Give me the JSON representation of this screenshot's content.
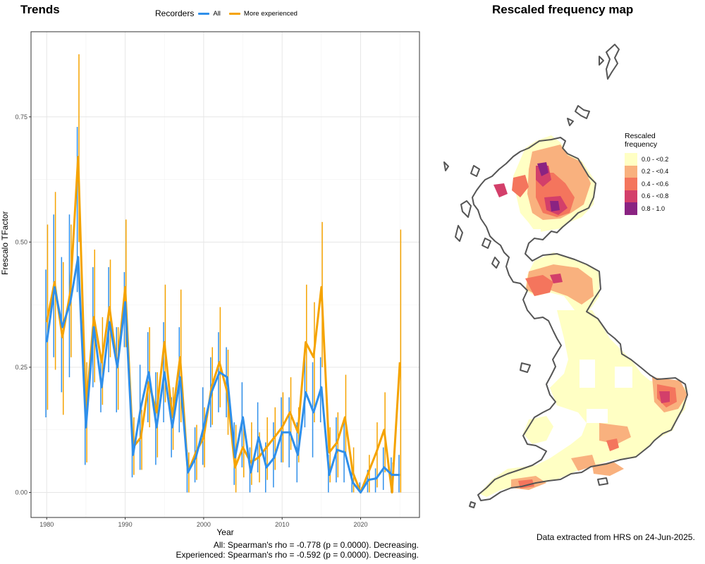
{
  "trends": {
    "title": "Trends",
    "legend_title": "Recorders",
    "legend": [
      {
        "label": "All",
        "color": "#2F8FEA"
      },
      {
        "label": "More experienced",
        "color": "#F5A300"
      }
    ]
  },
  "chart_data": {
    "type": "line",
    "title": "Trends",
    "xlabel": "Year",
    "ylabel": "Frescalo TFactor",
    "xlim": [
      1978.0,
      2027.5
    ],
    "ylim": [
      -0.05,
      0.92
    ],
    "x_ticks": [
      1980,
      1990,
      2000,
      2010,
      2020
    ],
    "y_ticks": [
      0.0,
      0.25,
      0.5,
      0.75
    ],
    "y_tick_labels": [
      "0.00",
      "0.25",
      "0.50",
      "0.75"
    ],
    "grid": true,
    "legend_position": "top",
    "series": [
      {
        "name": "All",
        "color": "#2F8FEA",
        "x": [
          1980,
          1981,
          1982,
          1983,
          1984,
          1985,
          1986,
          1987,
          1988,
          1989,
          1990,
          1991,
          1992,
          1993,
          1994,
          1995,
          1996,
          1997,
          1998,
          1999,
          2000,
          2001,
          2002,
          2003,
          2004,
          2005,
          2006,
          2007,
          2008,
          2009,
          2010,
          2011,
          2012,
          2013,
          2014,
          2015,
          2016,
          2017,
          2018,
          2019,
          2020,
          2021,
          2022,
          2023,
          2024,
          2025
        ],
        "y": [
          0.3,
          0.41,
          0.33,
          0.38,
          0.47,
          0.13,
          0.33,
          0.21,
          0.34,
          0.25,
          0.38,
          0.075,
          0.17,
          0.24,
          0.13,
          0.24,
          0.13,
          0.23,
          0.04,
          0.07,
          0.13,
          0.2,
          0.24,
          0.23,
          0.07,
          0.15,
          0.04,
          0.11,
          0.05,
          0.07,
          0.12,
          0.12,
          0.075,
          0.2,
          0.16,
          0.21,
          0.035,
          0.085,
          0.08,
          0.02,
          0.0,
          0.025,
          0.028,
          0.05,
          0.035,
          0.035
        ],
        "err_low": [
          0.15,
          0.27,
          0.2,
          0.23,
          0.4,
          0.055,
          0.21,
          0.16,
          0.24,
          0.16,
          0.29,
          0.03,
          0.045,
          0.14,
          0.055,
          0.14,
          0.07,
          0.12,
          0.0,
          0.02,
          0.055,
          0.13,
          0.16,
          0.15,
          0.015,
          0.05,
          0.0,
          0.04,
          0.0,
          0.01,
          0.06,
          0.05,
          0.02,
          0.13,
          0.07,
          0.14,
          0.0,
          0.02,
          0.02,
          0.0,
          0.0,
          0.0,
          0.0,
          0.005,
          0.0,
          0.0
        ],
        "err_high": [
          0.445,
          0.555,
          0.47,
          0.555,
          0.73,
          0.21,
          0.45,
          0.27,
          0.45,
          0.33,
          0.44,
          0.12,
          0.255,
          0.32,
          0.24,
          0.34,
          0.19,
          0.33,
          0.085,
          0.13,
          0.21,
          0.27,
          0.32,
          0.29,
          0.14,
          0.22,
          0.09,
          0.18,
          0.1,
          0.14,
          0.19,
          0.19,
          0.14,
          0.27,
          0.26,
          0.27,
          0.075,
          0.15,
          0.14,
          0.06,
          0.02,
          0.045,
          0.048,
          0.09,
          0.07,
          0.075
        ]
      },
      {
        "name": "More experienced",
        "color": "#F5A300",
        "x": [
          1980,
          1981,
          1982,
          1983,
          1984,
          1985,
          1986,
          1987,
          1988,
          1989,
          1990,
          1991,
          1992,
          1993,
          1994,
          1995,
          1996,
          1997,
          1998,
          1999,
          2000,
          2001,
          2002,
          2003,
          2004,
          2005,
          2006,
          2007,
          2008,
          2009,
          2010,
          2011,
          2012,
          2013,
          2014,
          2015,
          2016,
          2017,
          2018,
          2019,
          2020,
          2021,
          2022,
          2023,
          2024,
          2025
        ],
        "y": [
          0.34,
          0.42,
          0.31,
          0.4,
          0.67,
          0.16,
          0.35,
          0.26,
          0.37,
          0.25,
          0.41,
          0.09,
          0.11,
          0.22,
          0.16,
          0.3,
          0.15,
          0.27,
          0.04,
          0.08,
          0.11,
          0.21,
          0.26,
          0.2,
          0.05,
          0.09,
          0.06,
          0.07,
          0.09,
          0.11,
          0.13,
          0.16,
          0.12,
          0.3,
          0.27,
          0.41,
          0.08,
          0.1,
          0.15,
          0.04,
          0.0,
          0.04,
          0.08,
          0.125,
          0.0,
          0.26
        ],
        "err_low": [
          0.165,
          0.245,
          0.155,
          0.27,
          0.5,
          0.06,
          0.22,
          0.175,
          0.27,
          0.165,
          0.29,
          0.035,
          0.045,
          0.13,
          0.07,
          0.18,
          0.085,
          0.14,
          0.0,
          0.025,
          0.05,
          0.135,
          0.17,
          0.115,
          0.0,
          0.03,
          0.015,
          0.02,
          0.025,
          0.045,
          0.06,
          0.085,
          0.06,
          0.2,
          0.14,
          0.25,
          0.02,
          0.03,
          0.07,
          0.0,
          0.0,
          0.0,
          0.01,
          0.04,
          0.0,
          0.0
        ],
        "err_high": [
          0.535,
          0.6,
          0.46,
          0.535,
          0.875,
          0.26,
          0.485,
          0.35,
          0.465,
          0.33,
          0.545,
          0.15,
          0.165,
          0.33,
          0.24,
          0.415,
          0.21,
          0.405,
          0.08,
          0.135,
          0.17,
          0.29,
          0.37,
          0.285,
          0.135,
          0.14,
          0.14,
          0.12,
          0.15,
          0.17,
          0.2,
          0.23,
          0.17,
          0.415,
          0.38,
          0.54,
          0.13,
          0.16,
          0.235,
          0.09,
          0.01,
          0.075,
          0.14,
          0.2,
          0.06,
          0.525
        ]
      }
    ]
  },
  "spearman_notes": [
    "All: Spearman's rho = -0.778 (p = 0.0000). Decreasing.",
    "Experienced: Spearman's rho = -0.592 (p = 0.0000). Decreasing."
  ],
  "map": {
    "title": "Rescaled frequency map",
    "legend_title_line1": "Rescaled",
    "legend_title_line2": "frequency",
    "bins": [
      {
        "label": "0.0 - <0.2",
        "color": "#FFFFC4"
      },
      {
        "label": "0.2 - <0.4",
        "color": "#F9B17E"
      },
      {
        "label": "0.4 - <0.6",
        "color": "#F4755D"
      },
      {
        "label": "0.6 - <0.8",
        "color": "#D33F6A"
      },
      {
        "label": "0.8 - 1.0",
        "color": "#8A2382"
      }
    ],
    "outline_color": "#555555"
  },
  "source_note": "Data extracted from HRS on 24-Jun-2025."
}
